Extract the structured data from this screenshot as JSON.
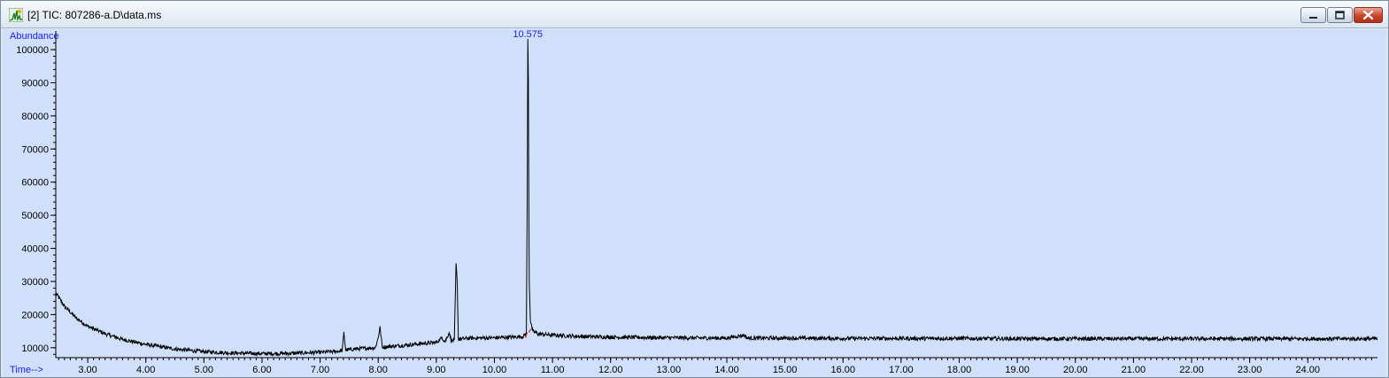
{
  "window": {
    "title": "[2] TIC: 807286-a.D\\data.ms",
    "icon": "chromatogram-icon",
    "controls": [
      "minimize",
      "maximize",
      "close"
    ]
  },
  "chart_data": {
    "type": "line",
    "title": "",
    "xlabel": "Time-->",
    "ylabel": "Abundance",
    "xlim": [
      2.45,
      25.2
    ],
    "ylim": [
      7000,
      103500
    ],
    "x_ticks": [
      "3.00",
      "4.00",
      "5.00",
      "6.00",
      "7.00",
      "8.00",
      "9.00",
      "10.00",
      "11.00",
      "12.00",
      "13.00",
      "14.00",
      "15.00",
      "16.00",
      "17.00",
      "18.00",
      "19.00",
      "20.00",
      "21.00",
      "22.00",
      "23.00",
      "24.00"
    ],
    "y_ticks": [
      "10000",
      "20000",
      "30000",
      "40000",
      "50000",
      "60000",
      "70000",
      "80000",
      "90000",
      "100000"
    ],
    "peak_label": {
      "text": "10.575",
      "x": 10.575,
      "y": 103200
    },
    "series": [
      {
        "color": "#000000",
        "points": [
          [
            2.45,
            26500
          ],
          [
            2.6,
            22500
          ],
          [
            2.8,
            19000
          ],
          [
            3.0,
            16500
          ],
          [
            3.3,
            14200
          ],
          [
            3.6,
            12500
          ],
          [
            4.0,
            11000
          ],
          [
            4.5,
            9600
          ],
          [
            5.0,
            8800
          ],
          [
            5.5,
            8400
          ],
          [
            6.0,
            8200
          ],
          [
            6.5,
            8300
          ],
          [
            7.0,
            8600
          ],
          [
            7.3,
            8900
          ],
          [
            7.38,
            9200
          ],
          [
            7.41,
            14500
          ],
          [
            7.44,
            9300
          ],
          [
            7.6,
            9600
          ],
          [
            7.95,
            10000
          ],
          [
            8.0,
            13000
          ],
          [
            8.03,
            16300
          ],
          [
            8.07,
            10200
          ],
          [
            8.3,
            10500
          ],
          [
            8.6,
            11000
          ],
          [
            8.8,
            11300
          ],
          [
            9.0,
            11600
          ],
          [
            9.1,
            13000
          ],
          [
            9.15,
            11800
          ],
          [
            9.22,
            14500
          ],
          [
            9.26,
            12000
          ],
          [
            9.31,
            12300
          ],
          [
            9.34,
            35500
          ],
          [
            9.36,
            29500
          ],
          [
            9.38,
            12600
          ],
          [
            9.6,
            12900
          ],
          [
            10.0,
            13000
          ],
          [
            10.3,
            13200
          ],
          [
            10.5,
            13400
          ],
          [
            10.55,
            14500
          ],
          [
            10.565,
            55000
          ],
          [
            10.575,
            103200
          ],
          [
            10.585,
            91000
          ],
          [
            10.59,
            63000
          ],
          [
            10.6,
            30000
          ],
          [
            10.62,
            18000
          ],
          [
            10.66,
            15000
          ],
          [
            10.75,
            14200
          ],
          [
            11.0,
            13800
          ],
          [
            11.5,
            13400
          ],
          [
            12.0,
            13200
          ],
          [
            12.5,
            13100
          ],
          [
            13.0,
            13000
          ],
          [
            14.0,
            12900
          ],
          [
            14.3,
            13800
          ],
          [
            14.35,
            12900
          ],
          [
            15.0,
            12900
          ],
          [
            16.0,
            12800
          ],
          [
            17.0,
            12800
          ],
          [
            18.0,
            12800
          ],
          [
            19.0,
            12700
          ],
          [
            20.0,
            12700
          ],
          [
            21.0,
            12700
          ],
          [
            22.0,
            12700
          ],
          [
            23.0,
            12700
          ],
          [
            24.0,
            12700
          ],
          [
            25.2,
            12700
          ]
        ]
      }
    ],
    "grid": false,
    "legend": "none",
    "background": "#d0e0fa",
    "noise_amplitude": 600
  }
}
